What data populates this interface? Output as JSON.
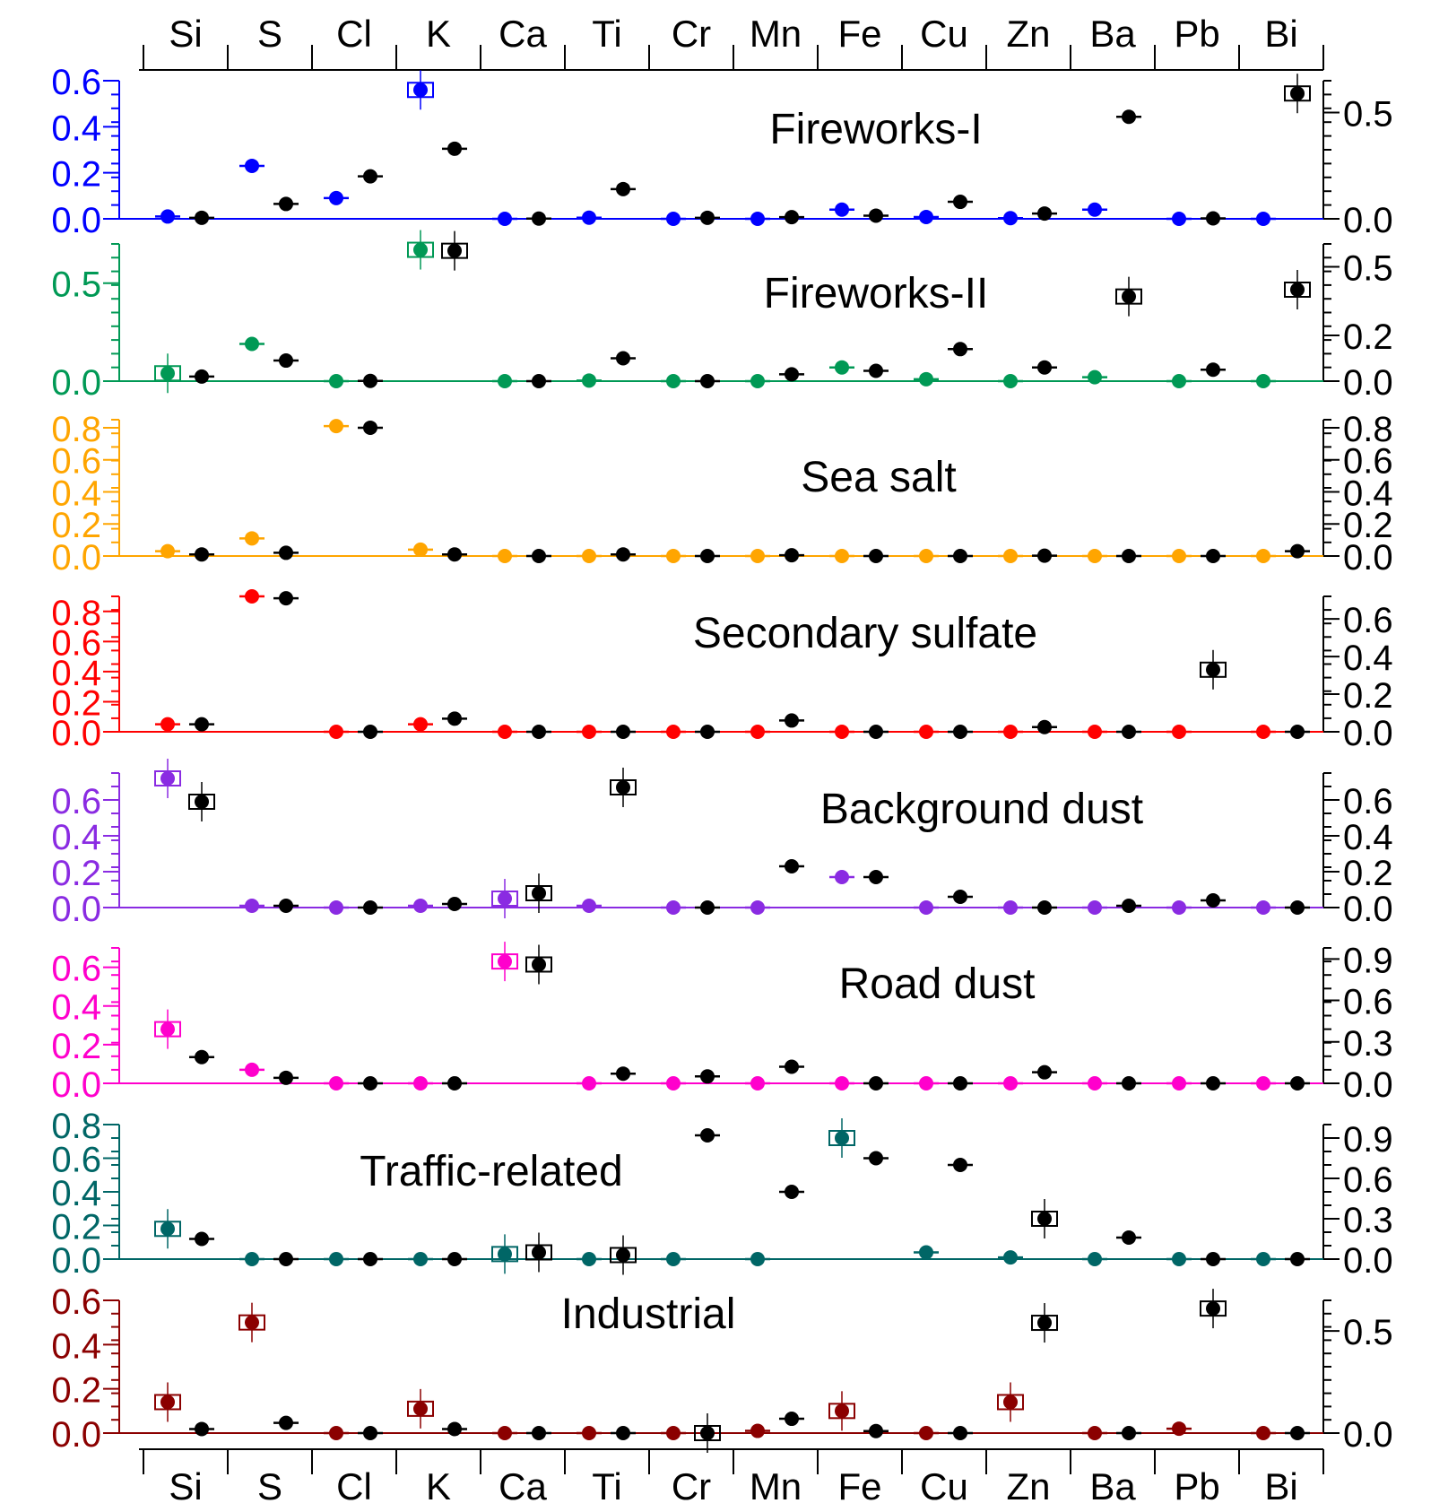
{
  "elements": [
    "Si",
    "S",
    "Cl",
    "K",
    "Ca",
    "Ti",
    "Cr",
    "Mn",
    "Fe",
    "Cu",
    "Zn",
    "Ba",
    "Pb",
    "Bi"
  ],
  "chart_data": {
    "type": "scatter",
    "description_layout": "stacked panels",
    "x_categories": [
      "Si",
      "S",
      "Cl",
      "K",
      "Ca",
      "Ti",
      "Cr",
      "Mn",
      "Fe",
      "Cu",
      "Zn",
      "Ba",
      "Pb",
      "Bi"
    ],
    "panels": [
      {
        "title": "Fireworks-I",
        "color": "#0000ff",
        "left_ticks": [
          "0.0",
          "0.2",
          "0.4",
          "0.6"
        ],
        "left_ylim": [
          0,
          0.6
        ],
        "right_ticks": [
          "0.0",
          "0.5"
        ],
        "right_ylim": [
          0,
          0.65
        ],
        "colored": [
          0.01,
          0.23,
          0.09,
          0.56,
          0.0,
          0.005,
          0.0,
          0.0,
          0.04,
          0.008,
          0.003,
          0.04,
          0.0,
          0.0
        ],
        "black": [
          0.005,
          0.07,
          0.2,
          0.33,
          0.001,
          0.14,
          0.005,
          0.008,
          0.015,
          0.08,
          0.025,
          0.48,
          0.002,
          0.59
        ],
        "colored_box": [
          false,
          false,
          false,
          true,
          false,
          false,
          false,
          false,
          false,
          false,
          false,
          false,
          false,
          false
        ],
        "black_box": [
          false,
          false,
          false,
          false,
          false,
          false,
          false,
          false,
          false,
          false,
          false,
          false,
          false,
          true
        ]
      },
      {
        "title": "Fireworks-II",
        "color": "#009955",
        "left_ticks": [
          "0.0",
          "0.5"
        ],
        "left_ylim": [
          0,
          0.7
        ],
        "right_ticks": [
          "0.0",
          "0.2",
          "0.5"
        ],
        "right_ylim": [
          0,
          0.6
        ],
        "colored": [
          0.04,
          0.19,
          0.0,
          0.67,
          0.0,
          0.003,
          0.0,
          0.0,
          0.07,
          0.01,
          0.0,
          0.02,
          0.0,
          0.0
        ],
        "black": [
          0.02,
          0.09,
          0.001,
          0.57,
          0.0,
          0.1,
          0.0,
          0.03,
          0.045,
          0.14,
          0.06,
          0.37,
          0.05,
          0.4
        ],
        "colored_box": [
          true,
          false,
          false,
          true,
          false,
          false,
          false,
          false,
          false,
          false,
          false,
          false,
          false,
          false
        ],
        "black_box": [
          false,
          false,
          false,
          true,
          false,
          false,
          false,
          false,
          false,
          false,
          false,
          true,
          false,
          true
        ]
      },
      {
        "title": "Sea salt",
        "color": "#ffa500",
        "left_ticks": [
          "0.0",
          "0.2",
          "0.4",
          "0.6",
          "0.8"
        ],
        "left_ylim": [
          0,
          0.85
        ],
        "right_ticks": [
          "0.0",
          "0.2",
          "0.4",
          "0.6",
          "0.8"
        ],
        "right_ylim": [
          0,
          0.85
        ],
        "colored": [
          0.03,
          0.11,
          null,
          0.04,
          0.0,
          0.0,
          0.0,
          0.0,
          0.0,
          0.0,
          0.0,
          0.0,
          0.0,
          0.0
        ],
        "black": [
          0.01,
          0.02,
          0.8,
          0.01,
          0.0,
          0.01,
          0.0,
          0.005,
          0.0,
          0.0,
          0.002,
          0.0,
          0.0,
          0.03
        ],
        "cl_colored": 0.81,
        "colored_box": [
          false,
          false,
          false,
          false,
          false,
          false,
          false,
          false,
          false,
          false,
          false,
          false,
          false,
          false
        ],
        "black_box": [
          false,
          false,
          false,
          false,
          false,
          false,
          false,
          false,
          false,
          false,
          false,
          false,
          false,
          false
        ]
      },
      {
        "title": "Secondary sulfate",
        "color": "#ff0000",
        "left_ticks": [
          "0.0",
          "0.2",
          "0.4",
          "0.6",
          "0.8"
        ],
        "left_ylim": [
          0,
          0.9
        ],
        "right_ticks": [
          "0.0",
          "0.2",
          "0.4",
          "0.6"
        ],
        "right_ylim": [
          0,
          0.72
        ],
        "colored": [
          0.05,
          0.9,
          0.0,
          0.05,
          0.0,
          0.0,
          0.0,
          0.0,
          0.0,
          0.0,
          0.0,
          0.0,
          0.0,
          0.0
        ],
        "black": [
          0.04,
          0.71,
          0.0,
          0.07,
          0.0,
          0.0,
          0.0,
          0.06,
          0.0,
          0.0,
          0.025,
          0.0,
          0.33,
          0.0
        ],
        "colored_box": [
          false,
          false,
          false,
          false,
          false,
          false,
          false,
          false,
          false,
          false,
          false,
          false,
          false,
          false
        ],
        "black_box": [
          false,
          false,
          false,
          false,
          false,
          false,
          false,
          false,
          false,
          false,
          false,
          false,
          true,
          false
        ]
      },
      {
        "title": "Background dust",
        "color": "#8a2be2",
        "left_ticks": [
          "0.0",
          "0.2",
          "0.4",
          "0.6"
        ],
        "left_ylim": [
          0,
          0.75
        ],
        "right_ticks": [
          "0.0",
          "0.2",
          "0.4",
          "0.6"
        ],
        "right_ylim": [
          0,
          0.75
        ],
        "colored": [
          0.72,
          0.01,
          0.0,
          0.01,
          0.05,
          0.01,
          0.0,
          0.0,
          0.17,
          0.0,
          0.0,
          0.0,
          0.0,
          0.0
        ],
        "black": [
          0.59,
          0.01,
          0.0,
          0.02,
          0.08,
          0.67,
          0.0,
          0.23,
          0.17,
          0.06,
          0.0,
          0.01,
          0.04,
          0.0
        ],
        "colored_box": [
          true,
          false,
          false,
          false,
          true,
          false,
          false,
          false,
          false,
          false,
          false,
          false,
          false,
          false
        ],
        "black_box": [
          true,
          false,
          false,
          false,
          true,
          true,
          false,
          false,
          false,
          false,
          false,
          false,
          false,
          false
        ]
      },
      {
        "title": "Road dust",
        "color": "#ff00cc",
        "left_ticks": [
          "0.0",
          "0.2",
          "0.4",
          "0.6"
        ],
        "left_ylim": [
          0,
          0.7
        ],
        "right_ticks": [
          "0.0",
          "0.3",
          "0.6",
          "0.9"
        ],
        "right_ylim": [
          0,
          0.98
        ],
        "colored": [
          0.28,
          0.07,
          0.0,
          0.0,
          0.63,
          0.0,
          0.0,
          0.0,
          0.0,
          0.0,
          0.0,
          0.0,
          0.0,
          0.0
        ],
        "black": [
          0.19,
          0.04,
          0.0,
          0.0,
          0.86,
          0.07,
          0.05,
          0.12,
          0.0,
          0.0,
          0.08,
          0.0,
          0.0,
          0.0
        ],
        "colored_box": [
          true,
          false,
          false,
          false,
          true,
          false,
          false,
          false,
          false,
          false,
          false,
          false,
          false,
          false
        ],
        "black_box": [
          false,
          false,
          false,
          false,
          true,
          false,
          false,
          false,
          false,
          false,
          false,
          false,
          false,
          false
        ]
      },
      {
        "title": "Traffic-related",
        "color": "#006666",
        "left_ticks": [
          "0.0",
          "0.2",
          "0.4",
          "0.6",
          "0.8"
        ],
        "left_ylim": [
          0,
          0.8
        ],
        "right_ticks": [
          "0.0",
          "0.3",
          "0.6",
          "0.9"
        ],
        "right_ylim": [
          0,
          1.0
        ],
        "colored": [
          0.18,
          0.0,
          0.0,
          0.0,
          0.03,
          0.0,
          0.0,
          0.0,
          0.72,
          0.04,
          0.01,
          0.0,
          0.0,
          0.0
        ],
        "black": [
          0.15,
          0.0,
          0.0,
          0.0,
          0.05,
          0.03,
          0.92,
          0.5,
          0.75,
          0.7,
          0.3,
          0.16,
          0.0,
          0.0
        ],
        "colored_box": [
          true,
          false,
          false,
          false,
          true,
          false,
          false,
          false,
          true,
          false,
          false,
          false,
          false,
          false
        ],
        "black_box": [
          false,
          false,
          false,
          false,
          true,
          true,
          false,
          false,
          false,
          false,
          true,
          false,
          false,
          false
        ]
      },
      {
        "title": "Industrial",
        "color": "#8b0000",
        "left_ticks": [
          "0.0",
          "0.2",
          "0.4",
          "0.6"
        ],
        "left_ylim": [
          0,
          0.6
        ],
        "right_ticks": [
          "0.0",
          "0.5"
        ],
        "right_ylim": [
          0,
          0.65
        ],
        "colored": [
          0.14,
          0.5,
          0.0,
          0.11,
          0.0,
          0.0,
          0.0,
          0.01,
          0.1,
          0.0,
          0.14,
          0.0,
          0.02,
          0.0
        ],
        "black": [
          0.02,
          0.05,
          0.0,
          0.02,
          0.0,
          0.0,
          0.0,
          0.07,
          0.01,
          0.0,
          0.54,
          0.0,
          0.61,
          0.0
        ],
        "colored_box": [
          true,
          true,
          false,
          true,
          false,
          false,
          false,
          false,
          true,
          false,
          true,
          false,
          false,
          false
        ],
        "black_box": [
          false,
          false,
          false,
          false,
          false,
          false,
          true,
          false,
          false,
          false,
          true,
          false,
          true,
          false
        ]
      }
    ]
  }
}
